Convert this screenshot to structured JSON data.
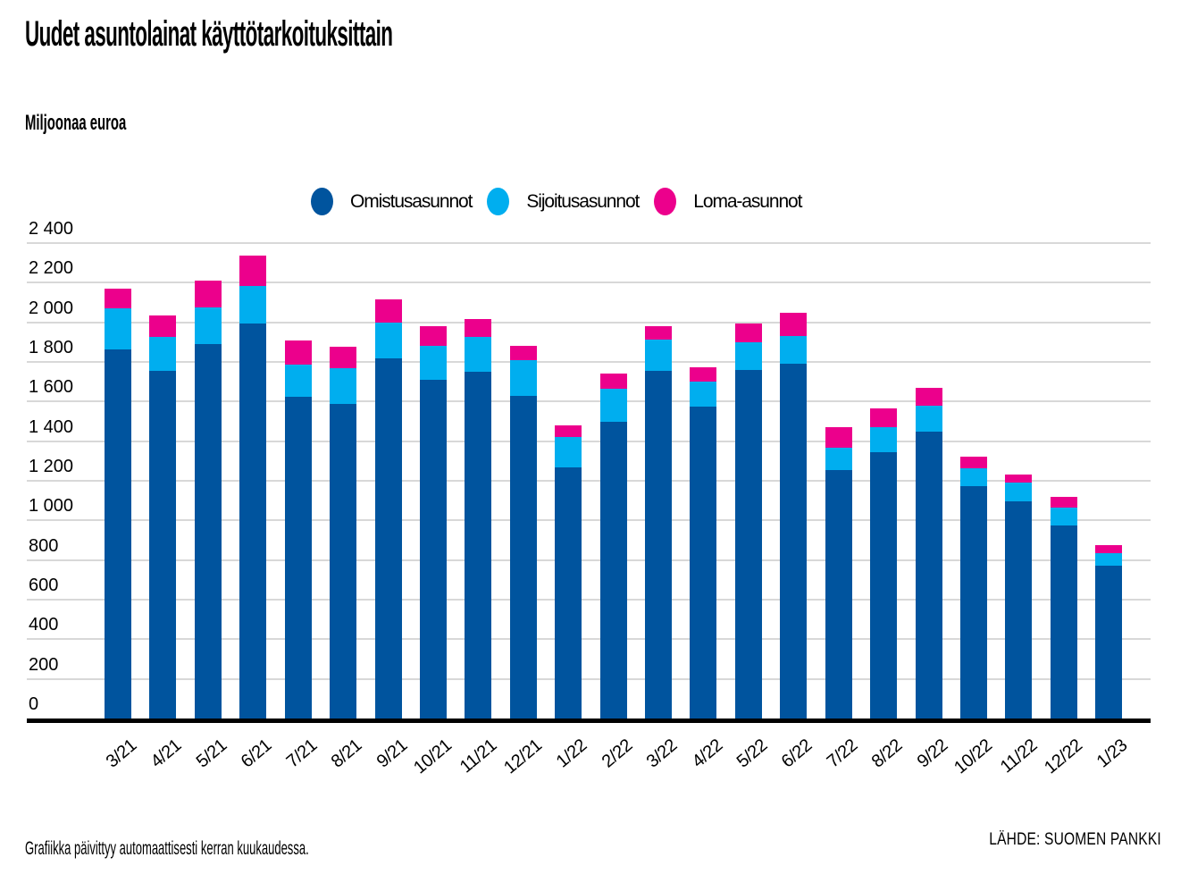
{
  "title": "Uudet asuntolainat käyttötarkoituksittain",
  "unit_label": "Miljoonaa euroa",
  "legend": [
    {
      "label": "Omistusasunnot",
      "color": "#00549E"
    },
    {
      "label": "Sijoitusasunnot",
      "color": "#00AEEF"
    },
    {
      "label": "Loma-asunnot",
      "color": "#EC008C"
    }
  ],
  "footer": {
    "note": "Grafiikka päivittyy automaattisesti kerran kuukaudessa.",
    "source": "LÄHDE: SUOMEN PANKKI"
  },
  "colors": {
    "owner": "#00549E",
    "investment": "#00AEEF",
    "holiday": "#EC008C",
    "gridline": "#D8D8D8",
    "axis": "#000000",
    "text": "#000000"
  },
  "chart_data": {
    "type": "bar",
    "stacked": true,
    "title": "Uudet asuntolainat käyttötarkoituksittain",
    "ylabel": "Miljoonaa euroa",
    "ylim": [
      0,
      2400
    ],
    "ytick_step": 200,
    "ytick_labels": [
      "0",
      "200",
      "400",
      "600",
      "800",
      "1 000",
      "1 200",
      "1 400",
      "1 600",
      "1 800",
      "2 000",
      "2 200",
      "2 400"
    ],
    "grid": true,
    "legend_position": "top",
    "categories": [
      "3/21",
      "4/21",
      "5/21",
      "6/21",
      "7/21",
      "8/21",
      "9/21",
      "10/21",
      "11/21",
      "12/21",
      "1/22",
      "2/22",
      "3/22",
      "4/22",
      "5/22",
      "6/22",
      "7/22",
      "8/22",
      "9/22",
      "10/22",
      "11/22",
      "12/22",
      "1/23"
    ],
    "series": [
      {
        "name": "Omistusasunnot",
        "color": "#00549E",
        "values": [
          1865,
          1755,
          1890,
          1995,
          1625,
          1590,
          1820,
          1710,
          1750,
          1630,
          1270,
          1500,
          1755,
          1575,
          1760,
          1790,
          1255,
          1345,
          1450,
          1175,
          1095,
          975,
          770
        ]
      },
      {
        "name": "Sijoitusasunnot",
        "color": "#00AEEF",
        "values": [
          205,
          170,
          185,
          190,
          160,
          180,
          180,
          170,
          175,
          180,
          150,
          165,
          160,
          125,
          140,
          140,
          110,
          125,
          130,
          90,
          95,
          90,
          65
        ]
      },
      {
        "name": "Loma-asunnot",
        "color": "#EC008C",
        "values": [
          100,
          110,
          135,
          150,
          125,
          105,
          115,
          100,
          90,
          70,
          60,
          75,
          65,
          75,
          95,
          120,
          105,
          95,
          90,
          55,
          40,
          55,
          40
        ]
      }
    ]
  }
}
